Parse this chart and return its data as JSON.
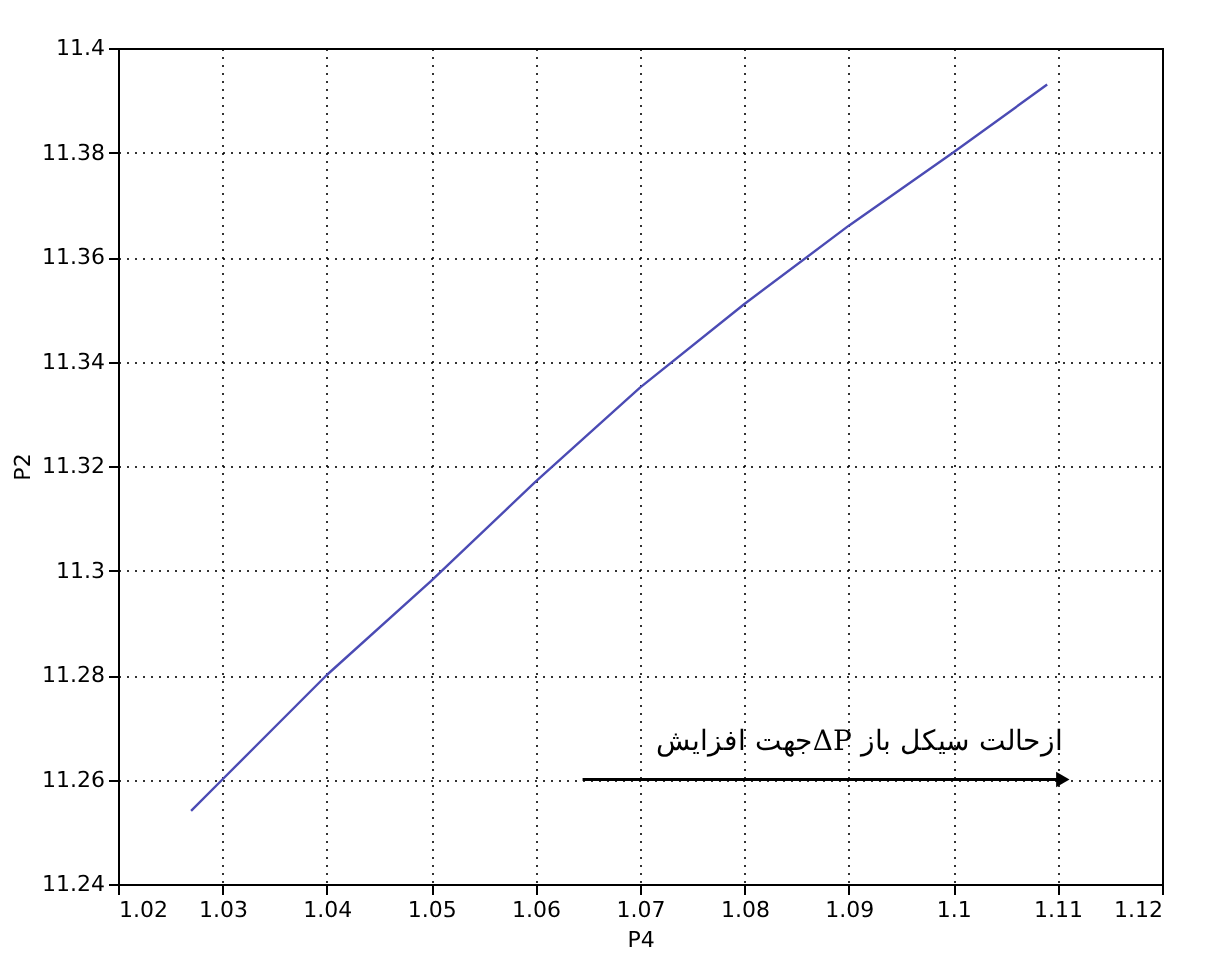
{
  "chart_data": {
    "type": "line",
    "xlabel": "P4",
    "ylabel": "P2",
    "x": [
      1.027,
      1.03,
      1.04,
      1.05,
      1.06,
      1.07,
      1.08,
      1.09,
      1.1,
      1.109
    ],
    "series": [
      {
        "color": "#4b4bb4",
        "values": [
          11.254,
          11.26,
          11.28,
          11.298,
          11.317,
          11.335,
          11.351,
          11.366,
          11.38,
          11.393
        ]
      }
    ],
    "xlim": [
      1.02,
      1.12
    ],
    "xticks": [
      1.02,
      1.03,
      1.04,
      1.05,
      1.06,
      1.07,
      1.08,
      1.09,
      1.1,
      1.11,
      1.12
    ],
    "ylim": [
      11.24,
      11.4
    ],
    "yticks": [
      11.24,
      11.26,
      11.28,
      11.3,
      11.32,
      11.34,
      11.36,
      11.38,
      11.4
    ],
    "grid": true,
    "line_style": "solid",
    "marker": "none",
    "annotations": [
      "جهت افزایشΔP ازحالت سیکل باز"
    ]
  }
}
